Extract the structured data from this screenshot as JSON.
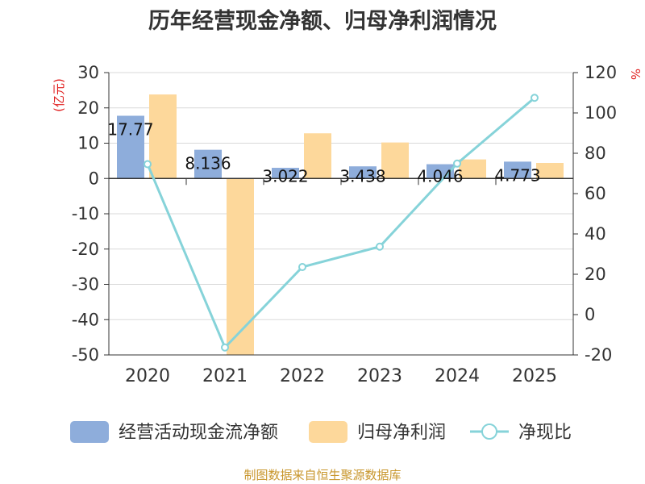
{
  "title": "历年经营现金净额、归母净利润情况",
  "footer": "制图数据来自恒生聚源数据库",
  "chart_data": {
    "type": "bar",
    "categories": [
      "2020",
      "2021",
      "2022",
      "2023",
      "2024",
      "2025"
    ],
    "series": [
      {
        "name": "经营活动现金流净额",
        "kind": "bar",
        "axis": "left",
        "color": "#8eaddb",
        "values": [
          17.77,
          8.136,
          3.022,
          3.438,
          4.046,
          4.773
        ],
        "labels": [
          "17.77",
          "8.136",
          "3.022",
          "3.438",
          "4.046",
          "4.773"
        ]
      },
      {
        "name": "归母净利润",
        "kind": "bar",
        "axis": "left",
        "color": "#fdd89b",
        "values": [
          23.8,
          -50.0,
          12.8,
          10.2,
          5.4,
          4.4
        ]
      },
      {
        "name": "净现比",
        "kind": "line",
        "axis": "right",
        "color": "#86d3d9",
        "values": [
          74.6,
          -16.3,
          23.6,
          33.7,
          74.9,
          107.5
        ]
      }
    ],
    "y_left": {
      "unit": "(亿元)",
      "min": -50,
      "max": 30,
      "step": 10,
      "ticks": [
        "30",
        "20",
        "10",
        "0",
        "-10",
        "-20",
        "-30",
        "-40",
        "-50"
      ]
    },
    "y_right": {
      "unit": "%",
      "min": -20,
      "max": 120,
      "step": 20,
      "ticks": [
        "120",
        "100",
        "80",
        "60",
        "40",
        "20",
        "0",
        "-20"
      ]
    },
    "legend": {
      "position": "bottom",
      "items": [
        "经营活动现金流净额",
        "归母净利润",
        "净现比"
      ]
    }
  }
}
